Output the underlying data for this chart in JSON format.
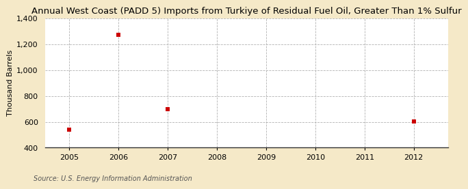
{
  "title": "Annual West Coast (PADD 5) Imports from Turkiye of Residual Fuel Oil, Greater Than 1% Sulfur",
  "ylabel": "Thousand Barrels",
  "source": "Source: U.S. Energy Information Administration",
  "x_data": [
    2005,
    2006,
    2007,
    2012
  ],
  "y_data": [
    541,
    1271,
    697,
    601
  ],
  "x_ticks": [
    2005,
    2006,
    2007,
    2008,
    2009,
    2010,
    2011,
    2012
  ],
  "ylim": [
    400,
    1400
  ],
  "y_ticks": [
    400,
    600,
    800,
    1000,
    1200,
    1400
  ],
  "y_tick_labels": [
    "400",
    "600",
    "800",
    "1,000",
    "1,200",
    "1,400"
  ],
  "marker_color": "#cc0000",
  "marker_size": 5,
  "figure_bg_color": "#f5e9c8",
  "plot_bg_color": "#ffffff",
  "grid_color": "#aaaaaa",
  "title_fontsize": 9.5,
  "label_fontsize": 8,
  "tick_fontsize": 8,
  "source_fontsize": 7,
  "xlim_left": 2004.5,
  "xlim_right": 2012.7
}
